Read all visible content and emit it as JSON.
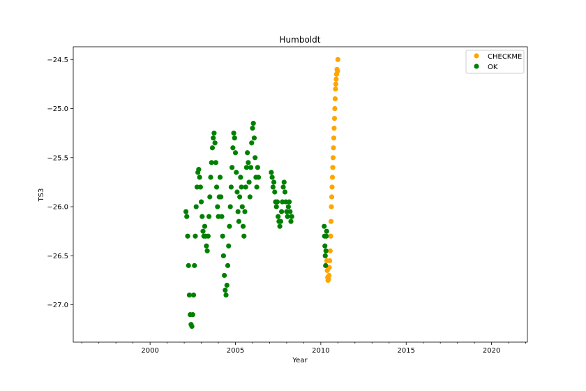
{
  "chart_data": {
    "type": "scatter",
    "title": "Humboldt",
    "xlabel": "Year",
    "ylabel": "TS3",
    "xlim": [
      1995.5,
      2022.1
    ],
    "ylim": [
      -27.38,
      -24.37
    ],
    "x_ticks": [
      2000,
      2005,
      2010,
      2015,
      2020
    ],
    "x_tick_labels": [
      "2000",
      "2005",
      "2010",
      "2015",
      "2020"
    ],
    "y_ticks": [
      -27.0,
      -26.5,
      -26.0,
      -25.5,
      -25.0,
      -24.5
    ],
    "y_tick_labels": [
      "−27.0",
      "−26.5",
      "−26.0",
      "−25.5",
      "−25.0",
      "−24.5"
    ],
    "legend_position": "top-right",
    "grid": false,
    "series": [
      {
        "name": "CHECKME",
        "color": "#ffa500",
        "points": [
          [
            2010.35,
            -26.55
          ],
          [
            2010.38,
            -26.65
          ],
          [
            2010.4,
            -26.72
          ],
          [
            2010.42,
            -26.75
          ],
          [
            2010.45,
            -26.74
          ],
          [
            2010.48,
            -26.7
          ],
          [
            2010.5,
            -26.62
          ],
          [
            2010.52,
            -26.55
          ],
          [
            2010.55,
            -26.45
          ],
          [
            2010.58,
            -26.3
          ],
          [
            2010.6,
            -26.15
          ],
          [
            2010.62,
            -26.0
          ],
          [
            2010.64,
            -25.9
          ],
          [
            2010.66,
            -25.8
          ],
          [
            2010.68,
            -25.7
          ],
          [
            2010.7,
            -25.6
          ],
          [
            2010.72,
            -25.5
          ],
          [
            2010.74,
            -25.4
          ],
          [
            2010.76,
            -25.3
          ],
          [
            2010.78,
            -25.2
          ],
          [
            2010.8,
            -25.1
          ],
          [
            2010.82,
            -25.0
          ],
          [
            2010.84,
            -24.9
          ],
          [
            2010.86,
            -24.8
          ],
          [
            2010.88,
            -24.75
          ],
          [
            2010.9,
            -24.7
          ],
          [
            2010.92,
            -24.65
          ],
          [
            2010.95,
            -24.6
          ],
          [
            2010.98,
            -24.62
          ],
          [
            2011.0,
            -24.5
          ]
        ]
      },
      {
        "name": "OK",
        "color": "#008000",
        "points": [
          [
            2002.1,
            -26.05
          ],
          [
            2002.15,
            -26.1
          ],
          [
            2002.2,
            -26.3
          ],
          [
            2002.25,
            -26.6
          ],
          [
            2002.3,
            -26.9
          ],
          [
            2002.35,
            -27.1
          ],
          [
            2002.4,
            -27.2
          ],
          [
            2002.45,
            -27.22
          ],
          [
            2002.5,
            -27.1
          ],
          [
            2002.55,
            -26.9
          ],
          [
            2002.6,
            -26.6
          ],
          [
            2002.65,
            -26.3
          ],
          [
            2002.7,
            -26.0
          ],
          [
            2002.75,
            -25.8
          ],
          [
            2002.8,
            -25.65
          ],
          [
            2002.85,
            -25.62
          ],
          [
            2002.9,
            -25.7
          ],
          [
            2002.95,
            -25.8
          ],
          [
            2003.0,
            -25.95
          ],
          [
            2003.05,
            -26.1
          ],
          [
            2003.1,
            -26.25
          ],
          [
            2003.15,
            -26.3
          ],
          [
            2003.2,
            -26.2
          ],
          [
            2003.25,
            -26.3
          ],
          [
            2003.3,
            -26.4
          ],
          [
            2003.35,
            -26.45
          ],
          [
            2003.4,
            -26.3
          ],
          [
            2003.45,
            -26.1
          ],
          [
            2003.5,
            -25.9
          ],
          [
            2003.55,
            -25.7
          ],
          [
            2003.6,
            -25.55
          ],
          [
            2003.65,
            -25.4
          ],
          [
            2003.7,
            -25.3
          ],
          [
            2003.75,
            -25.25
          ],
          [
            2003.8,
            -25.35
          ],
          [
            2003.85,
            -25.55
          ],
          [
            2003.9,
            -25.8
          ],
          [
            2003.95,
            -26.0
          ],
          [
            2004.0,
            -26.1
          ],
          [
            2004.05,
            -25.9
          ],
          [
            2004.1,
            -25.7
          ],
          [
            2004.15,
            -25.9
          ],
          [
            2004.2,
            -26.1
          ],
          [
            2004.25,
            -26.3
          ],
          [
            2004.3,
            -26.5
          ],
          [
            2004.35,
            -26.7
          ],
          [
            2004.4,
            -26.85
          ],
          [
            2004.45,
            -26.9
          ],
          [
            2004.5,
            -26.8
          ],
          [
            2004.55,
            -26.6
          ],
          [
            2004.6,
            -26.4
          ],
          [
            2004.65,
            -26.2
          ],
          [
            2004.7,
            -26.0
          ],
          [
            2004.75,
            -25.8
          ],
          [
            2004.8,
            -25.6
          ],
          [
            2004.85,
            -25.4
          ],
          [
            2004.9,
            -25.25
          ],
          [
            2004.95,
            -25.3
          ],
          [
            2005.0,
            -25.45
          ],
          [
            2005.05,
            -25.65
          ],
          [
            2005.1,
            -25.85
          ],
          [
            2005.15,
            -26.05
          ],
          [
            2005.2,
            -26.15
          ],
          [
            2005.25,
            -25.9
          ],
          [
            2005.3,
            -25.7
          ],
          [
            2005.35,
            -25.8
          ],
          [
            2005.4,
            -26.0
          ],
          [
            2005.45,
            -26.2
          ],
          [
            2005.5,
            -26.3
          ],
          [
            2005.55,
            -26.05
          ],
          [
            2005.6,
            -25.8
          ],
          [
            2005.65,
            -25.6
          ],
          [
            2005.7,
            -25.45
          ],
          [
            2005.75,
            -25.55
          ],
          [
            2005.8,
            -25.75
          ],
          [
            2005.85,
            -25.9
          ],
          [
            2005.9,
            -25.6
          ],
          [
            2005.95,
            -25.35
          ],
          [
            2006.0,
            -25.2
          ],
          [
            2006.05,
            -25.15
          ],
          [
            2006.1,
            -25.3
          ],
          [
            2006.15,
            -25.5
          ],
          [
            2006.2,
            -25.7
          ],
          [
            2006.25,
            -25.8
          ],
          [
            2006.3,
            -25.6
          ],
          [
            2006.35,
            -25.7
          ],
          [
            2007.1,
            -25.65
          ],
          [
            2007.15,
            -25.7
          ],
          [
            2007.2,
            -25.8
          ],
          [
            2007.25,
            -25.75
          ],
          [
            2007.3,
            -25.85
          ],
          [
            2007.35,
            -25.95
          ],
          [
            2007.4,
            -26.0
          ],
          [
            2007.45,
            -25.95
          ],
          [
            2007.5,
            -26.1
          ],
          [
            2007.55,
            -26.15
          ],
          [
            2007.6,
            -26.2
          ],
          [
            2007.65,
            -26.15
          ],
          [
            2007.7,
            -26.05
          ],
          [
            2007.75,
            -25.95
          ],
          [
            2007.8,
            -25.8
          ],
          [
            2007.85,
            -25.75
          ],
          [
            2007.9,
            -25.85
          ],
          [
            2007.95,
            -25.95
          ],
          [
            2008.0,
            -26.05
          ],
          [
            2008.05,
            -26.1
          ],
          [
            2008.1,
            -26.0
          ],
          [
            2008.15,
            -25.95
          ],
          [
            2008.2,
            -26.05
          ],
          [
            2008.25,
            -26.15
          ],
          [
            2008.3,
            -26.1
          ],
          [
            2010.2,
            -26.2
          ],
          [
            2010.22,
            -26.3
          ],
          [
            2010.24,
            -26.4
          ],
          [
            2010.26,
            -26.5
          ],
          [
            2010.28,
            -26.6
          ],
          [
            2010.3,
            -26.45
          ],
          [
            2010.32,
            -26.3
          ],
          [
            2010.34,
            -26.25
          ]
        ]
      }
    ]
  }
}
